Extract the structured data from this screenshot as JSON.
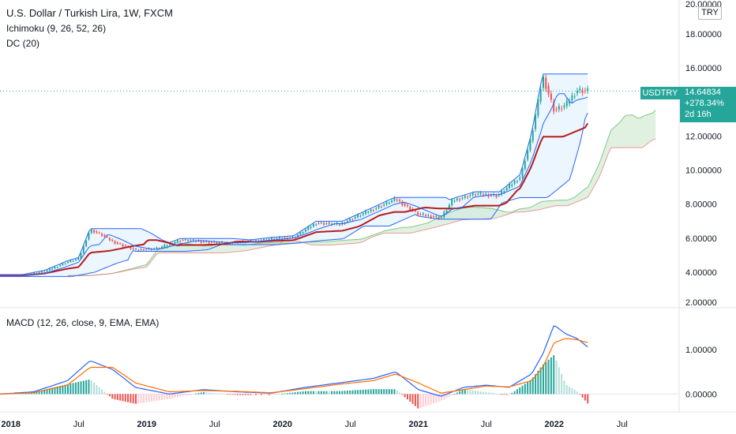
{
  "header": {
    "title": "U.S. Dollar / Turkish Lira, 1W, FXCM",
    "ichimoku": "Ichimoku (9, 26, 52, 26)",
    "dc": "DC (20)",
    "macd": "MACD (12, 26, close, 9, EMA, EMA)"
  },
  "symbol_tag": "USDTRY",
  "currency_tag": "TRY",
  "price": {
    "last": "14.64834",
    "change": "+278.34%",
    "countdown": "2d 16h"
  },
  "colors": {
    "up": "#26a69a",
    "down": "#ef5350",
    "baseline": "#b71c1c",
    "conversion": "#2962ff",
    "cloud": "#c8e6c9",
    "donchian": "#2962ff",
    "donchian_fill": "#e3f2fd",
    "macd": "#2962ff",
    "signal": "#ff6d00"
  },
  "chart_data": [
    {
      "type": "line",
      "name": "price",
      "x": [
        "2017-12",
        "2018-02",
        "2018-04",
        "2018-06",
        "2018-07",
        "2018-08",
        "2018-09",
        "2018-10",
        "2018-12",
        "2019-02",
        "2019-04",
        "2019-06",
        "2019-08",
        "2019-10",
        "2019-12",
        "2020-02",
        "2020-04",
        "2020-06",
        "2020-08",
        "2020-10",
        "2020-11",
        "2021-01",
        "2021-03",
        "2021-04",
        "2021-06",
        "2021-08",
        "2021-10",
        "2021-11",
        "2021-12",
        "2022-01",
        "2022-02",
        "2022-03",
        "2022-04"
      ],
      "series": [
        {
          "values": [
            3.8,
            3.8,
            4.05,
            4.6,
            4.8,
            6.5,
            6.2,
            5.8,
            5.3,
            5.4,
            5.9,
            5.8,
            5.7,
            5.8,
            5.95,
            6.05,
            6.9,
            6.8,
            7.4,
            8.0,
            8.3,
            7.4,
            7.2,
            8.2,
            8.6,
            8.5,
            9.6,
            12.0,
            15.5,
            13.5,
            13.8,
            14.7,
            14.65
          ]
        }
      ],
      "x_ticks": [
        "2018",
        "Jul",
        "2019",
        "Jul",
        "2020",
        "Jul",
        "2021",
        "Jul",
        "2022",
        "Jul"
      ],
      "y_ticks": [
        "2.00000",
        "4.00000",
        "6.00000",
        "8.00000",
        "10.00000",
        "12.00000",
        "14.00000",
        "16.00000",
        "18.00000",
        "20.00000"
      ],
      "ylim": [
        2,
        20
      ]
    },
    {
      "type": "line",
      "name": "macd",
      "x": [
        "2017-12",
        "2018-03",
        "2018-06",
        "2018-08",
        "2018-10",
        "2018-12",
        "2019-03",
        "2019-06",
        "2019-09",
        "2019-12",
        "2020-03",
        "2020-06",
        "2020-09",
        "2020-11",
        "2021-01",
        "2021-03",
        "2021-05",
        "2021-07",
        "2021-09",
        "2021-11",
        "2021-12",
        "2022-01",
        "2022-02",
        "2022-03",
        "2022-04"
      ],
      "series": [
        {
          "values": [
            0.0,
            0.05,
            0.3,
            0.75,
            0.55,
            0.15,
            0.0,
            0.1,
            0.05,
            0.02,
            0.15,
            0.25,
            0.35,
            0.5,
            0.1,
            -0.05,
            0.15,
            0.2,
            0.15,
            0.45,
            0.9,
            1.55,
            1.35,
            1.25,
            1.05
          ]
        },
        {
          "values": [
            0.0,
            0.03,
            0.2,
            0.6,
            0.6,
            0.25,
            0.05,
            0.08,
            0.06,
            0.03,
            0.12,
            0.22,
            0.3,
            0.45,
            0.25,
            0.02,
            0.1,
            0.18,
            0.16,
            0.3,
            0.6,
            1.15,
            1.25,
            1.22,
            1.15
          ]
        }
      ],
      "y_ticks": [
        "0.00000",
        "1.00000"
      ],
      "ylim": [
        -0.4,
        1.9
      ]
    }
  ]
}
